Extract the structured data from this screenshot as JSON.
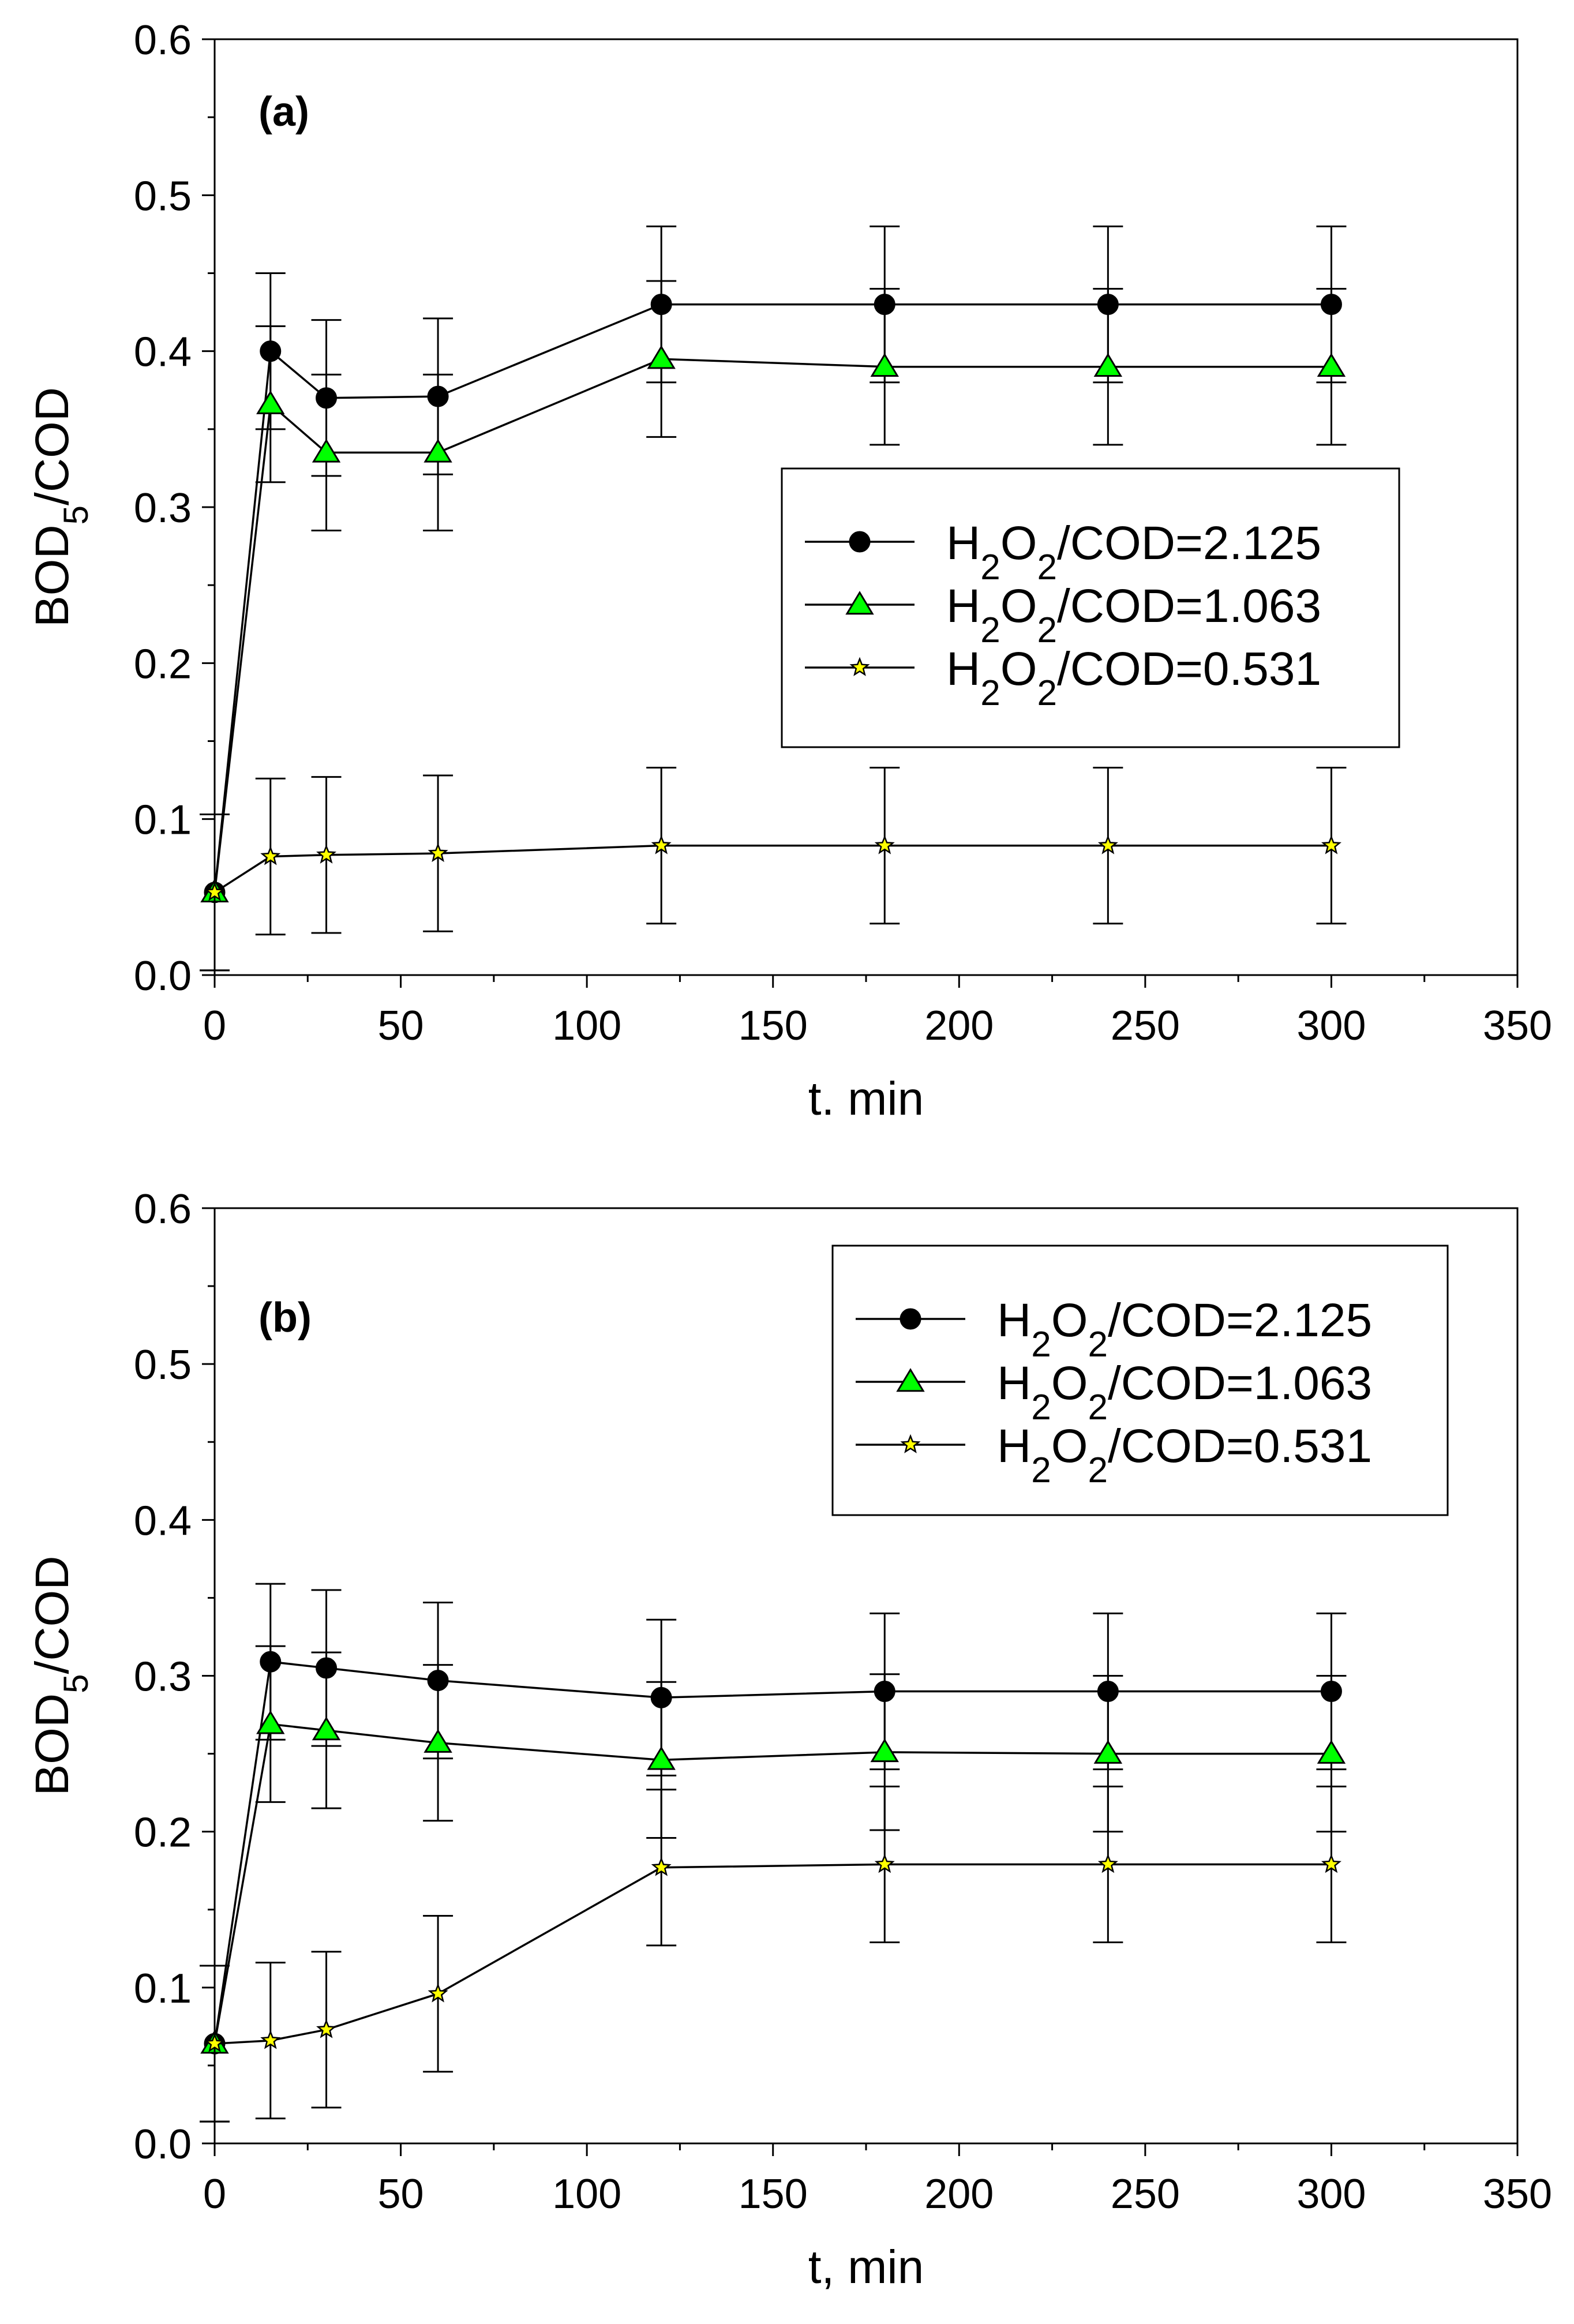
{
  "chart_data": [
    {
      "type": "line",
      "panel_label": "(a)",
      "xlabel": "t. min",
      "ylabel": {
        "prefix": "BOD",
        "sub": "5",
        "suffix": "/COD"
      },
      "xlim": [
        0,
        350
      ],
      "ylim": [
        0,
        0.6
      ],
      "xticks": [
        "0",
        "50",
        "100",
        "150",
        "200",
        "250",
        "300",
        "350"
      ],
      "yticks": [
        "0.0",
        "0.1",
        "0.2",
        "0.3",
        "0.4",
        "0.5",
        "0.6"
      ],
      "legend_position": "middle-right",
      "error_bar": 0.05,
      "x": [
        0,
        15,
        30,
        60,
        120,
        180,
        240,
        300
      ],
      "series": [
        {
          "name": "H2O2/COD=2.125",
          "label_parts": [
            "H",
            "2",
            "O",
            "2",
            "/COD=2.125"
          ],
          "marker": "circle",
          "color": "#000000",
          "values": [
            0.053,
            0.4,
            0.37,
            0.371,
            0.43,
            0.43,
            0.43,
            0.43
          ]
        },
        {
          "name": "H2O2/COD=1.063",
          "label_parts": [
            "H",
            "2",
            "O",
            "2",
            "/COD=1.063"
          ],
          "marker": "triangle",
          "color": "#00ff00",
          "values": [
            0.053,
            0.366,
            0.335,
            0.335,
            0.395,
            0.39,
            0.39,
            0.39
          ]
        },
        {
          "name": "H2O2/COD=0.531",
          "label_parts": [
            "H",
            "2",
            "O",
            "2",
            "/COD=0.531"
          ],
          "marker": "star",
          "color": "#ffff00",
          "values": [
            0.053,
            0.076,
            0.077,
            0.078,
            0.083,
            0.083,
            0.083,
            0.083
          ]
        }
      ]
    },
    {
      "type": "line",
      "panel_label": "(b)",
      "xlabel": "t, min",
      "ylabel": {
        "prefix": "BOD",
        "sub": "5",
        "suffix": "/COD"
      },
      "xlim": [
        0,
        350
      ],
      "ylim": [
        0,
        0.6
      ],
      "xticks": [
        "0",
        "50",
        "100",
        "150",
        "200",
        "250",
        "300",
        "350"
      ],
      "yticks": [
        "0.0",
        "0.1",
        "0.2",
        "0.3",
        "0.4",
        "0.5",
        "0.6"
      ],
      "legend_position": "top-right",
      "error_bar": 0.05,
      "x": [
        0,
        15,
        30,
        60,
        120,
        180,
        240,
        300
      ],
      "series": [
        {
          "name": "H2O2/COD=2.125",
          "label_parts": [
            "H",
            "2",
            "O",
            "2",
            "/COD=2.125"
          ],
          "marker": "circle",
          "color": "#000000",
          "values": [
            0.064,
            0.309,
            0.305,
            0.297,
            0.286,
            0.29,
            0.29,
            0.29
          ]
        },
        {
          "name": "H2O2/COD=1.063",
          "label_parts": [
            "H",
            "2",
            "O",
            "2",
            "/COD=1.063"
          ],
          "marker": "triangle",
          "color": "#00ff00",
          "values": [
            0.064,
            0.269,
            0.265,
            0.257,
            0.246,
            0.251,
            0.25,
            0.25
          ]
        },
        {
          "name": "H2O2/COD=0.531",
          "label_parts": [
            "H",
            "2",
            "O",
            "2",
            "/COD=0.531"
          ],
          "marker": "star",
          "color": "#ffff00",
          "values": [
            0.064,
            0.066,
            0.073,
            0.096,
            0.177,
            0.179,
            0.179,
            0.179
          ]
        }
      ]
    }
  ]
}
